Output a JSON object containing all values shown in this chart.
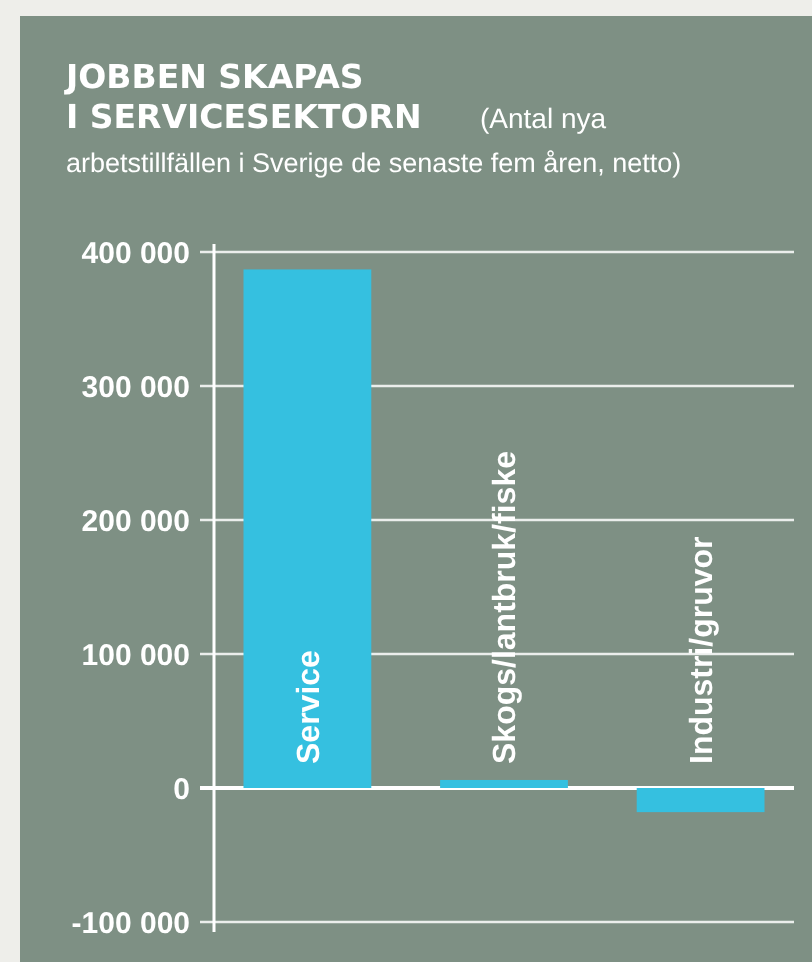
{
  "chart_data": {
    "type": "bar",
    "title": "JOBBEN SKAPAS\nI SERVICESEKTORN",
    "subtitle": "(Antal nya arbetstillfällen i Sverige de senaste fem åren, netto)",
    "categories": [
      "Service",
      "Skogs/lantbruk/fiske",
      "Industri/gruvor"
    ],
    "values": [
      387000,
      6000,
      -18000
    ],
    "color": "#35c0e0",
    "ylim": [
      -100000,
      400000
    ],
    "yticks": [
      {
        "value": -100000,
        "label": "-100 000"
      },
      {
        "value": 0,
        "label": "0"
      },
      {
        "value": 100000,
        "label": "100 000"
      },
      {
        "value": 200000,
        "label": "200 000"
      },
      {
        "value": 300000,
        "label": "300 000"
      },
      {
        "value": 400000,
        "label": "400 000"
      }
    ],
    "grid": true
  }
}
